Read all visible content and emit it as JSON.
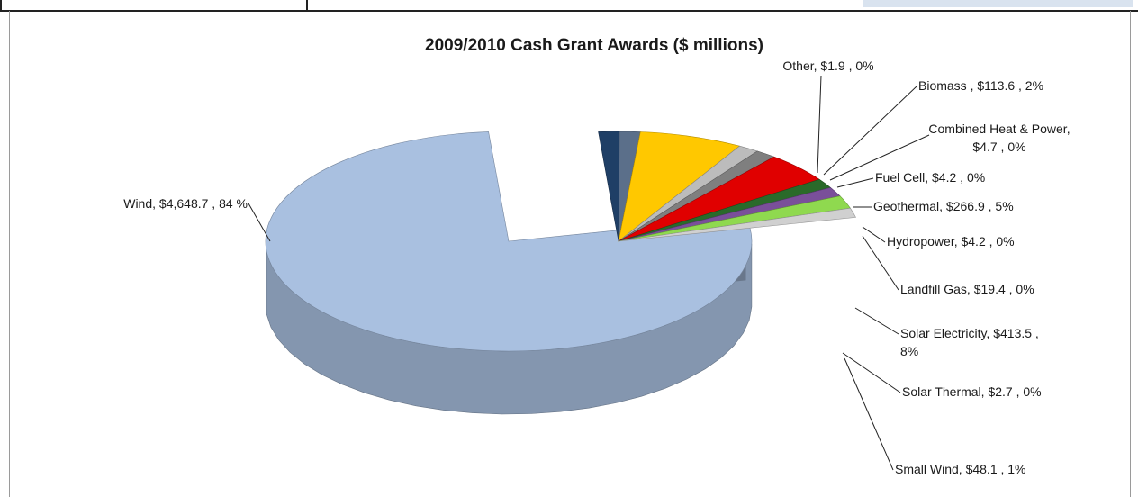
{
  "chart_data": {
    "type": "pie",
    "title": "2009/2010 Cash Grant  Awards ($ millions)",
    "slices": [
      {
        "name": "Wind",
        "value": 4648.7,
        "label_lines": [
          "Wind, $4,648.7 , 84 %"
        ],
        "color": "#a9c0e0"
      },
      {
        "name": "Small Wind",
        "value": 48.1,
        "label_lines": [
          "Small Wind, $48.1 , 1%"
        ],
        "color": "#1f3f66"
      },
      {
        "name": "Solar Thermal",
        "value": 2.7,
        "label_lines": [
          "Solar Thermal, $2.7 , 0%"
        ],
        "color": "#5b6f8a"
      },
      {
        "name": "Solar Electricity",
        "value": 413.5,
        "label_lines": [
          "Solar Electricity, $413.5 ,",
          "8%"
        ],
        "color": "#ffc800"
      },
      {
        "name": "Landfill Gas",
        "value": 19.4,
        "label_lines": [
          "Landfill Gas, $19.4 , 0%"
        ],
        "color": "#bcbcbc"
      },
      {
        "name": "Hydropower",
        "value": 4.2,
        "label_lines": [
          "Hydropower, $4.2 , 0%"
        ],
        "color": "#7f7f7f"
      },
      {
        "name": "Geothermal",
        "value": 266.9,
        "label_lines": [
          "Geothermal, $266.9 , 5%"
        ],
        "color": "#e00000"
      },
      {
        "name": "Fuel Cell",
        "value": 4.2,
        "label_lines": [
          "Fuel Cell, $4.2 , 0%"
        ],
        "color": "#2a6a2a"
      },
      {
        "name": "Combined Heat & Power",
        "value": 4.7,
        "label_lines": [
          "Combined Heat & Power,",
          "$4.7 , 0%"
        ],
        "color": "#7a4f9a"
      },
      {
        "name": "Biomass",
        "value": 113.6,
        "label_lines": [
          "Biomass , $113.6 , 2%"
        ],
        "color": "#8fd94f"
      },
      {
        "name": "Other",
        "value": 1.9,
        "label_lines": [
          "Other, $1.9 , 0%"
        ],
        "color": "#d0d0d0"
      }
    ]
  }
}
